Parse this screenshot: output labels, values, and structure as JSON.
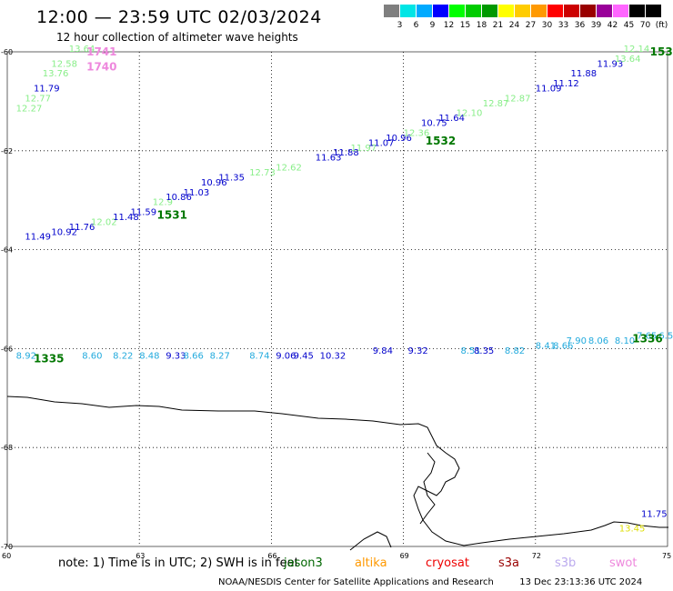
{
  "header": {
    "title": "12:00 — 23:59 UTC 02/03/2024",
    "subtitle": "12 hour collection of altimeter wave heights"
  },
  "scale": {
    "unit": "(ft)",
    "labels": [
      "3",
      "6",
      "9",
      "12",
      "15",
      "18",
      "21",
      "24",
      "27",
      "30",
      "33",
      "36",
      "39",
      "42",
      "45",
      "70"
    ],
    "colors": [
      "#7f7f7f",
      "#00e5e5",
      "#00aaff",
      "#0000ff",
      "#00ff00",
      "#00cc00",
      "#009900",
      "#ffff00",
      "#ffcc00",
      "#ff9900",
      "#ff0000",
      "#cc0000",
      "#990000",
      "#990099",
      "#ff66ff",
      "#000000",
      "#000000"
    ]
  },
  "map": {
    "lon_range": [
      60,
      75
    ],
    "lat_range": [
      -70,
      -60
    ],
    "lon_ticks": [
      "60",
      "63",
      "66",
      "69",
      "72",
      "75"
    ],
    "lat_ticks": [
      {
        "label": "-60",
        "lat": -60
      },
      {
        "label": "-62",
        "lat": -62
      },
      {
        "label": "-64",
        "lat": -64
      },
      {
        "label": "-66",
        "lat": -66
      },
      {
        "label": "-68",
        "lat": -68
      },
      {
        "label": "-70",
        "lat": -70
      }
    ],
    "grid": "dotted",
    "passes": [
      {
        "label": "1741",
        "lon": 61.8,
        "lat": -60.0,
        "color": "#ee88dd"
      },
      {
        "label": "1740",
        "lon": 61.8,
        "lat": -60.3,
        "color": "#ee88dd"
      },
      {
        "label": "1531",
        "lon": 63.4,
        "lat": -63.3,
        "color": "#007700"
      },
      {
        "label": "1532",
        "lon": 69.5,
        "lat": -61.8,
        "color": "#007700"
      },
      {
        "label": "153",
        "lon": 74.6,
        "lat": -60.0,
        "color": "#007700"
      },
      {
        "label": "1335",
        "lon": 60.6,
        "lat": -66.2,
        "color": "#007700"
      },
      {
        "label": "1336",
        "lon": 74.2,
        "lat": -65.8,
        "color": "#007700"
      }
    ],
    "wave_heights": [
      {
        "v": "13.64",
        "lon": 61.4,
        "lat": -60.0,
        "color": "#88ee88"
      },
      {
        "v": "12.58",
        "lon": 61.0,
        "lat": -60.3,
        "color": "#88ee88"
      },
      {
        "v": "13.76",
        "lon": 60.8,
        "lat": -60.5,
        "color": "#88ee88"
      },
      {
        "v": "11.79",
        "lon": 60.6,
        "lat": -60.8,
        "color": "#0000cc"
      },
      {
        "v": "12.77",
        "lon": 60.4,
        "lat": -61.0,
        "color": "#88ee88"
      },
      {
        "v": "12.27",
        "lon": 60.2,
        "lat": -61.2,
        "color": "#88ee88"
      },
      {
        "v": "11.49",
        "lon": 60.4,
        "lat": -63.8,
        "color": "#0000cc"
      },
      {
        "v": "10.92",
        "lon": 61.0,
        "lat": -63.7,
        "color": "#0000cc"
      },
      {
        "v": "11.76",
        "lon": 61.4,
        "lat": -63.6,
        "color": "#0000cc"
      },
      {
        "v": "12.02",
        "lon": 61.9,
        "lat": -63.5,
        "color": "#88ee88"
      },
      {
        "v": "11.48",
        "lon": 62.4,
        "lat": -63.4,
        "color": "#0000cc"
      },
      {
        "v": "11.59",
        "lon": 62.8,
        "lat": -63.3,
        "color": "#0000cc"
      },
      {
        "v": "12.9",
        "lon": 63.3,
        "lat": -63.1,
        "color": "#88ee88"
      },
      {
        "v": "10.86",
        "lon": 63.6,
        "lat": -63.0,
        "color": "#0000cc"
      },
      {
        "v": "11.03",
        "lon": 64.0,
        "lat": -62.9,
        "color": "#0000cc"
      },
      {
        "v": "10.96",
        "lon": 64.4,
        "lat": -62.7,
        "color": "#0000cc"
      },
      {
        "v": "11.35",
        "lon": 64.8,
        "lat": -62.6,
        "color": "#0000cc"
      },
      {
        "v": "12.73",
        "lon": 65.5,
        "lat": -62.5,
        "color": "#88ee88"
      },
      {
        "v": "12.62",
        "lon": 66.1,
        "lat": -62.4,
        "color": "#88ee88"
      },
      {
        "v": "11.63",
        "lon": 67.0,
        "lat": -62.2,
        "color": "#0000cc"
      },
      {
        "v": "11.88",
        "lon": 67.4,
        "lat": -62.1,
        "color": "#0000cc"
      },
      {
        "v": "11.97",
        "lon": 67.8,
        "lat": -62.0,
        "color": "#88ee88"
      },
      {
        "v": "11.07",
        "lon": 68.2,
        "lat": -61.9,
        "color": "#0000cc"
      },
      {
        "v": "10.96",
        "lon": 68.6,
        "lat": -61.8,
        "color": "#0000cc"
      },
      {
        "v": "12.36",
        "lon": 69.0,
        "lat": -61.7,
        "color": "#88ee88"
      },
      {
        "v": "10.75",
        "lon": 69.4,
        "lat": -61.5,
        "color": "#0000cc"
      },
      {
        "v": "11.64",
        "lon": 69.8,
        "lat": -61.4,
        "color": "#0000cc"
      },
      {
        "v": "12.10",
        "lon": 70.2,
        "lat": -61.3,
        "color": "#88ee88"
      },
      {
        "v": "12.87",
        "lon": 70.8,
        "lat": -61.1,
        "color": "#88ee88"
      },
      {
        "v": "12.87",
        "lon": 71.3,
        "lat": -61.0,
        "color": "#88ee88"
      },
      {
        "v": "11.09",
        "lon": 72.0,
        "lat": -60.8,
        "color": "#0000cc"
      },
      {
        "v": "11.12",
        "lon": 72.4,
        "lat": -60.7,
        "color": "#0000cc"
      },
      {
        "v": "11.88",
        "lon": 72.8,
        "lat": -60.5,
        "color": "#0000cc"
      },
      {
        "v": "11.93",
        "lon": 73.4,
        "lat": -60.3,
        "color": "#0000cc"
      },
      {
        "v": "13.64",
        "lon": 73.8,
        "lat": -60.2,
        "color": "#88ee88"
      },
      {
        "v": "12.14",
        "lon": 74.0,
        "lat": -60.0,
        "color": "#88ee88"
      },
      {
        "v": "8.92",
        "lon": 60.2,
        "lat": -66.2,
        "color": "#22aadd"
      },
      {
        "v": "8.60",
        "lon": 61.7,
        "lat": -66.2,
        "color": "#22aadd"
      },
      {
        "v": "8.22",
        "lon": 62.4,
        "lat": -66.2,
        "color": "#22aadd"
      },
      {
        "v": "8.48",
        "lon": 63.0,
        "lat": -66.2,
        "color": "#22aadd"
      },
      {
        "v": "9.33",
        "lon": 63.6,
        "lat": -66.2,
        "color": "#0000cc"
      },
      {
        "v": "8.66",
        "lon": 64.0,
        "lat": -66.2,
        "color": "#22aadd"
      },
      {
        "v": "8.27",
        "lon": 64.6,
        "lat": -66.2,
        "color": "#22aadd"
      },
      {
        "v": "8.74",
        "lon": 65.5,
        "lat": -66.2,
        "color": "#22aadd"
      },
      {
        "v": "9.06",
        "lon": 66.1,
        "lat": -66.2,
        "color": "#0000cc"
      },
      {
        "v": "9.45",
        "lon": 66.5,
        "lat": -66.2,
        "color": "#0000cc"
      },
      {
        "v": "10.32",
        "lon": 67.1,
        "lat": -66.2,
        "color": "#0000cc"
      },
      {
        "v": "9.84",
        "lon": 68.3,
        "lat": -66.1,
        "color": "#0000cc"
      },
      {
        "v": "9.32",
        "lon": 69.1,
        "lat": -66.1,
        "color": "#0000cc"
      },
      {
        "v": "8.51",
        "lon": 70.3,
        "lat": -66.1,
        "color": "#22aadd"
      },
      {
        "v": "8.35",
        "lon": 70.6,
        "lat": -66.1,
        "color": "#0000cc"
      },
      {
        "v": "8.82",
        "lon": 71.3,
        "lat": -66.1,
        "color": "#22aadd"
      },
      {
        "v": "8.41",
        "lon": 72.0,
        "lat": -66.0,
        "color": "#22aadd"
      },
      {
        "v": "8.66",
        "lon": 72.4,
        "lat": -66.0,
        "color": "#22aadd"
      },
      {
        "v": "7.90",
        "lon": 72.7,
        "lat": -65.9,
        "color": "#22aadd"
      },
      {
        "v": "8.06",
        "lon": 73.2,
        "lat": -65.9,
        "color": "#22aadd"
      },
      {
        "v": "8.10",
        "lon": 73.8,
        "lat": -65.9,
        "color": "#22aadd"
      },
      {
        "v": "7.65",
        "lon": 74.3,
        "lat": -65.8,
        "color": "#22aadd"
      },
      {
        "v": "6.5",
        "lon": 74.8,
        "lat": -65.8,
        "color": "#22aadd"
      },
      {
        "v": "11.75",
        "lon": 74.4,
        "lat": -69.4,
        "color": "#0000cc"
      },
      {
        "v": "13.45",
        "lon": 73.9,
        "lat": -69.7,
        "color": "#dddd00"
      }
    ]
  },
  "note": "note: 1) Time is in UTC; 2) SWH is in feet",
  "legend": [
    {
      "name": "jason3",
      "color": "#006600"
    },
    {
      "name": "altika",
      "color": "#ff9900"
    },
    {
      "name": "cryosat",
      "color": "#ee0000"
    },
    {
      "name": "s3a",
      "color": "#990000"
    },
    {
      "name": "s3b",
      "color": "#bbaaee"
    },
    {
      "name": "swot",
      "color": "#ee88dd"
    }
  ],
  "footer": {
    "center": "NOAA/NESDIS Center for Satellite Applications and Research",
    "timestamp": "13 Dec 23:13:36 UTC 2024"
  }
}
